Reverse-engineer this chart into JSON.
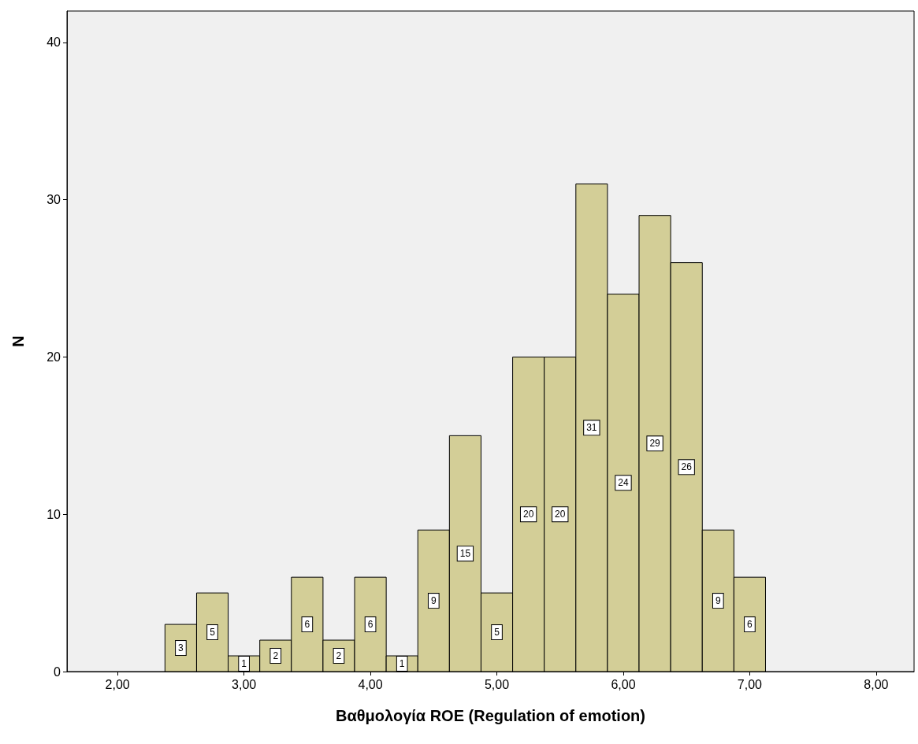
{
  "chart_data": {
    "type": "histogram",
    "xlabel": "Βαθμολογία ROE (Regulation of emotion)",
    "ylabel": "N",
    "bins": [
      2.375,
      2.625,
      2.875,
      3.125,
      3.375,
      3.625,
      3.875,
      4.125,
      4.375,
      4.625,
      4.875,
      5.125,
      5.375,
      5.625,
      5.875,
      6.125,
      6.375,
      6.625,
      6.875,
      7.125
    ],
    "values": [
      3,
      5,
      1,
      2,
      6,
      2,
      6,
      1,
      9,
      15,
      5,
      20,
      20,
      31,
      24,
      29,
      26,
      9,
      6
    ],
    "color": "#d3ce97",
    "data_labels": true,
    "xlim": [
      1.6,
      8.3
    ],
    "xticks": [
      {
        "value": 2,
        "label": "2,00"
      },
      {
        "value": 3,
        "label": "3,00"
      },
      {
        "value": 4,
        "label": "4,00"
      },
      {
        "value": 5,
        "label": "5,00"
      },
      {
        "value": 6,
        "label": "6,00"
      },
      {
        "value": 7,
        "label": "7,00"
      },
      {
        "value": 8,
        "label": "8,00"
      }
    ],
    "ylim": [
      0,
      42
    ],
    "yticks": [
      0,
      10,
      20,
      30,
      40
    ]
  }
}
